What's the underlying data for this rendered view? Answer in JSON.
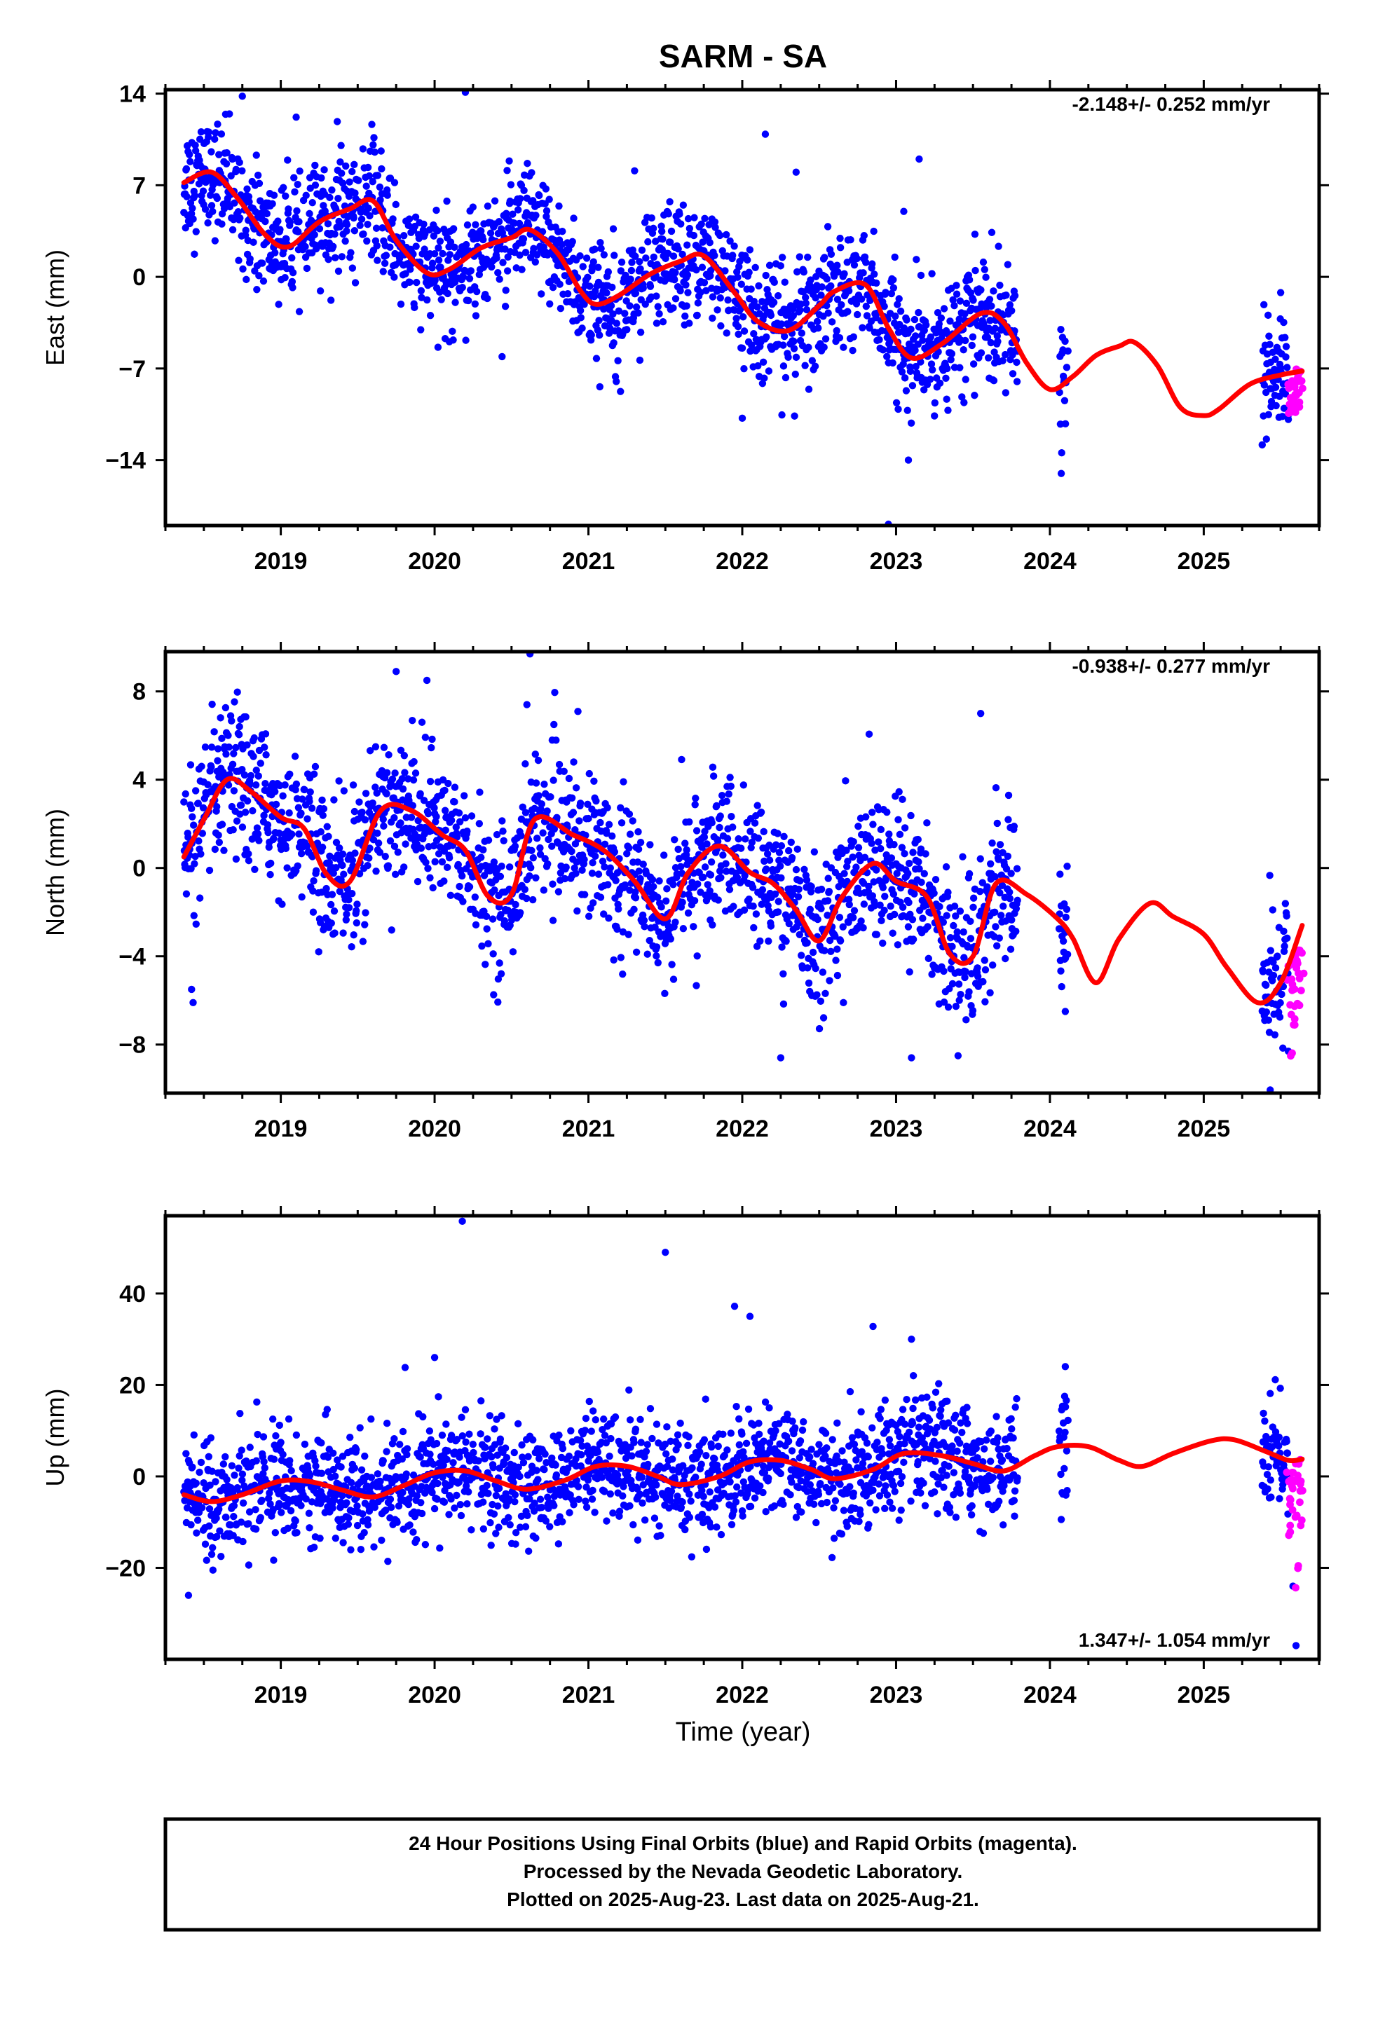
{
  "title": "SARM - SA",
  "x_axis": {
    "label": "Time (year)",
    "range": [
      2018.25,
      2025.75
    ],
    "ticks": [
      "2019",
      "2020",
      "2021",
      "2022",
      "2023",
      "2024",
      "2025"
    ]
  },
  "colors": {
    "final_orbits": "#0000ff",
    "rapid_orbits": "#ff00ff",
    "fit": "#ff0000",
    "frame": "#000000"
  },
  "footer": {
    "line1": "24 Hour Positions Using Final Orbits (blue) and Rapid Orbits (magenta).",
    "line2": "Processed by the Nevada Geodetic Laboratory.",
    "line3": "Plotted on 2025-Aug-23. Last data on 2025-Aug-21."
  },
  "chart_data": [
    {
      "type": "scatter",
      "component": "east",
      "ylabel": "East (mm)",
      "ylim": [
        -19,
        14.3
      ],
      "yticks": [
        14,
        7,
        0,
        -7,
        -14
      ],
      "rate_label": "-2.148+/- 0.252 mm/yr",
      "model": {
        "offset": 8.8,
        "trend": -2.148,
        "annual_cos": 1.95,
        "annual_sin": 0.7
      },
      "data_spans": [
        [
          2018.37,
          2023.79
        ],
        [
          2024.06,
          2024.12
        ],
        [
          2025.38,
          2025.55
        ]
      ],
      "rapid_span": [
        2025.55,
        2025.64
      ],
      "noise": 2.2,
      "fit": {
        "x": [
          2018.37,
          2018.55,
          2018.72,
          2018.9,
          2019.05,
          2019.25,
          2019.45,
          2019.6,
          2019.75,
          2019.95,
          2020.1,
          2020.3,
          2020.5,
          2020.62,
          2020.8,
          2020.95,
          2021.05,
          2021.2,
          2021.4,
          2021.6,
          2021.75,
          2021.95,
          2022.1,
          2022.3,
          2022.5,
          2022.6,
          2022.8,
          2022.95,
          2023.1,
          2023.3,
          2023.55,
          2023.7,
          2023.85,
          2024.0,
          2024.15,
          2024.3,
          2024.45,
          2024.55,
          2024.7,
          2024.85,
          2025.0,
          2025.1,
          2025.3,
          2025.5,
          2025.64
        ],
        "y": [
          7.2,
          8.0,
          6.0,
          3.2,
          2.3,
          4.2,
          5.2,
          5.8,
          2.8,
          0.3,
          0.6,
          2.2,
          3.0,
          3.6,
          1.8,
          -1.1,
          -2.1,
          -1.4,
          0.2,
          1.2,
          1.6,
          -1.2,
          -3.4,
          -4.1,
          -2.2,
          -1.1,
          -0.6,
          -3.9,
          -6.2,
          -5.1,
          -2.8,
          -3.5,
          -6.6,
          -8.6,
          -7.6,
          -6.0,
          -5.3,
          -5.0,
          -6.8,
          -10.0,
          -10.6,
          -10.1,
          -8.2,
          -7.5,
          -7.2
        ]
      },
      "outliers": [
        {
          "x": 2018.75,
          "y": 13.8
        },
        {
          "x": 2019.1,
          "y": 12.2
        },
        {
          "x": 2020.2,
          "y": 14.1
        },
        {
          "x": 2021.3,
          "y": 8.1
        },
        {
          "x": 2022.15,
          "y": 10.9
        },
        {
          "x": 2022.35,
          "y": 8.0
        },
        {
          "x": 2023.15,
          "y": 9.0
        },
        {
          "x": 2023.05,
          "y": 5.0
        },
        {
          "x": 2023.08,
          "y": -14.0
        },
        {
          "x": 2022.95,
          "y": -18.9
        },
        {
          "x": 2022.0,
          "y": -10.8
        },
        {
          "x": 2025.5,
          "y": -1.2
        }
      ]
    },
    {
      "type": "scatter",
      "component": "north",
      "ylabel": "North (mm)",
      "ylim": [
        -10.2,
        9.8
      ],
      "yticks": [
        8,
        4,
        0,
        -4,
        -8
      ],
      "rate_label": "-0.938+/- 0.277 mm/yr",
      "model": {
        "offset": 3.0,
        "trend": -0.938,
        "annual_cos": 2.1,
        "annual_sin": 0.9
      },
      "data_spans": [
        [
          2018.37,
          2023.79
        ],
        [
          2024.06,
          2024.12
        ],
        [
          2025.38,
          2025.55
        ]
      ],
      "rapid_span": [
        2025.55,
        2025.64
      ],
      "noise": 1.6,
      "fit": {
        "x": [
          2018.37,
          2018.5,
          2018.65,
          2018.8,
          2019.0,
          2019.15,
          2019.3,
          2019.45,
          2019.65,
          2019.85,
          2020.05,
          2020.2,
          2020.35,
          2020.5,
          2020.65,
          2020.9,
          2021.1,
          2021.3,
          2021.5,
          2021.65,
          2021.85,
          2022.05,
          2022.2,
          2022.35,
          2022.5,
          2022.65,
          2022.85,
          2023.0,
          2023.2,
          2023.35,
          2023.5,
          2023.65,
          2023.85,
          2024.05,
          2024.15,
          2024.3,
          2024.45,
          2024.65,
          2024.8,
          2025.0,
          2025.15,
          2025.35,
          2025.5,
          2025.64
        ],
        "y": [
          0.5,
          2.2,
          4.0,
          3.5,
          2.3,
          1.8,
          -0.3,
          -0.6,
          2.6,
          2.6,
          1.5,
          0.8,
          -1.3,
          -1.2,
          2.2,
          1.5,
          0.8,
          -0.6,
          -2.3,
          -0.2,
          1.0,
          -0.2,
          -0.7,
          -1.9,
          -3.3,
          -1.3,
          0.2,
          -0.6,
          -1.3,
          -3.9,
          -4.0,
          -0.7,
          -1.2,
          -2.3,
          -3.2,
          -5.2,
          -3.2,
          -1.6,
          -2.2,
          -3.0,
          -4.5,
          -6.1,
          -5.2,
          -2.6
        ]
      },
      "outliers": [
        {
          "x": 2018.42,
          "y": -5.5
        },
        {
          "x": 2018.43,
          "y": -6.1
        },
        {
          "x": 2019.75,
          "y": 8.9
        },
        {
          "x": 2019.95,
          "y": 8.5
        },
        {
          "x": 2020.62,
          "y": 9.7
        },
        {
          "x": 2020.6,
          "y": 7.4
        },
        {
          "x": 2022.25,
          "y": -8.6
        },
        {
          "x": 2023.1,
          "y": -8.6
        },
        {
          "x": 2023.55,
          "y": 7.0
        },
        {
          "x": 2024.1,
          "y": -6.5
        },
        {
          "x": 2025.55,
          "y": -8.3
        }
      ]
    },
    {
      "type": "scatter",
      "component": "up",
      "ylabel": "Up (mm)",
      "ylim": [
        -40,
        57
      ],
      "yticks": [
        40,
        20,
        0,
        -20
      ],
      "rate_label": "1.347+/- 1.054 mm/yr",
      "model": {
        "offset": -3.5,
        "trend": 1.347,
        "annual_cos": 1.0,
        "annual_sin": 2.5
      },
      "data_spans": [
        [
          2018.37,
          2023.79
        ],
        [
          2024.06,
          2024.12
        ],
        [
          2025.38,
          2025.55
        ]
      ],
      "rapid_span": [
        2025.55,
        2025.64
      ],
      "noise": 6.0,
      "fit": {
        "x": [
          2018.37,
          2018.55,
          2018.75,
          2019.0,
          2019.2,
          2019.4,
          2019.6,
          2019.8,
          2020.0,
          2020.2,
          2020.4,
          2020.6,
          2020.85,
          2021.05,
          2021.25,
          2021.45,
          2021.6,
          2021.85,
          2022.05,
          2022.25,
          2022.45,
          2022.6,
          2022.85,
          2023.05,
          2023.3,
          2023.5,
          2023.7,
          2023.9,
          2024.05,
          2024.25,
          2024.45,
          2024.6,
          2024.8,
          2025.05,
          2025.2,
          2025.4,
          2025.55,
          2025.64
        ],
        "y": [
          -4.0,
          -5.5,
          -4.0,
          -1.0,
          -1.2,
          -3.0,
          -4.5,
          -2.0,
          0.8,
          1.2,
          -1.0,
          -2.8,
          -0.8,
          2.2,
          2.2,
          0.0,
          -1.8,
          0.0,
          3.2,
          3.5,
          1.5,
          -0.5,
          1.5,
          5.0,
          4.5,
          2.8,
          1.2,
          4.5,
          6.5,
          6.5,
          3.5,
          2.2,
          5.0,
          7.8,
          8.0,
          5.5,
          3.5,
          3.8
        ]
      },
      "outliers": [
        {
          "x": 2018.4,
          "y": -26.0
        },
        {
          "x": 2020.18,
          "y": 55.8
        },
        {
          "x": 2021.5,
          "y": 49.0
        },
        {
          "x": 2021.95,
          "y": 37.2
        },
        {
          "x": 2022.05,
          "y": 35.0
        },
        {
          "x": 2022.85,
          "y": 32.8
        },
        {
          "x": 2023.1,
          "y": 30.0
        },
        {
          "x": 2020.0,
          "y": 26.0
        },
        {
          "x": 2024.1,
          "y": 24.0
        },
        {
          "x": 2025.6,
          "y": -37.0
        },
        {
          "x": 2025.58,
          "y": -24.0
        }
      ]
    }
  ]
}
